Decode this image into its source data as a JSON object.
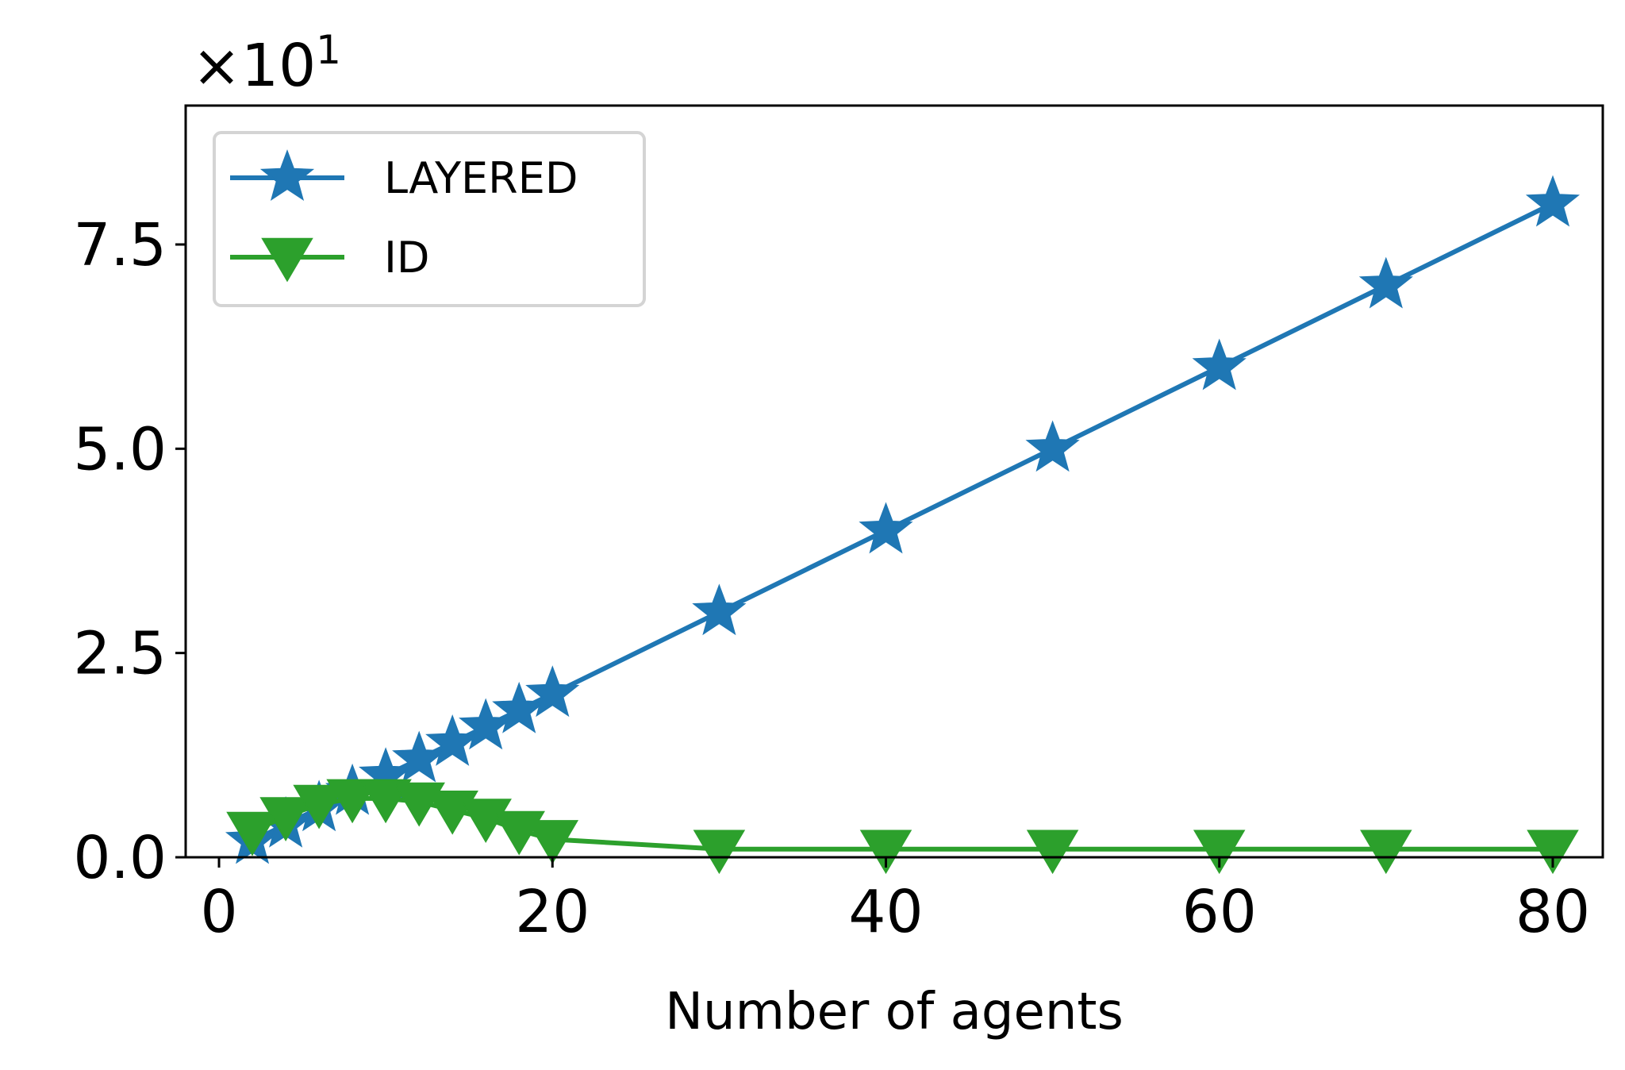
{
  "chart_data": {
    "type": "line",
    "title": "",
    "xlabel": "Number of agents",
    "ylabel": "",
    "y_offset_text": "×10",
    "y_offset_exponent": "1",
    "y_scale_factor": 10,
    "xlim": [
      -2.0,
      83.0
    ],
    "ylim": [
      0,
      92
    ],
    "x_ticks": [
      0,
      20,
      40,
      60,
      80
    ],
    "x_tick_labels": [
      "0",
      "20",
      "40",
      "60",
      "80"
    ],
    "y_ticks": [
      0,
      25,
      50,
      75
    ],
    "y_tick_labels": [
      "0.0",
      "2.5",
      "5.0",
      "7.5"
    ],
    "grid": false,
    "legend_position": "upper left",
    "series": [
      {
        "name": "LAYERED",
        "color": "#1f77b4",
        "marker": "star",
        "x": [
          2,
          4,
          6,
          8,
          10,
          12,
          14,
          16,
          18,
          20,
          30,
          40,
          50,
          60,
          70,
          80
        ],
        "y": [
          2,
          4,
          6,
          8,
          10,
          12,
          14,
          16,
          18,
          20,
          30,
          40,
          50,
          60,
          70,
          80
        ]
      },
      {
        "name": "ID",
        "color": "#2ca02c",
        "marker": "triangle-down",
        "x": [
          2,
          4,
          6,
          8,
          10,
          12,
          14,
          16,
          18,
          20,
          30,
          40,
          50,
          60,
          70,
          80
        ],
        "y": [
          3.2,
          5.0,
          6.5,
          7.2,
          7.2,
          6.8,
          5.8,
          4.8,
          3.3,
          2.2,
          1.0,
          1.0,
          1.0,
          1.0,
          1.0,
          1.0
        ]
      }
    ]
  }
}
